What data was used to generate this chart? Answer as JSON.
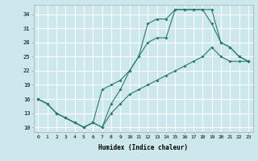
{
  "xlabel": "Humidex (Indice chaleur)",
  "background_color": "#cce8ec",
  "grid_color": "#ffffff",
  "line_color": "#2a7a70",
  "yticks": [
    10,
    13,
    16,
    19,
    22,
    25,
    28,
    31,
    34
  ],
  "xticks": [
    0,
    1,
    2,
    3,
    4,
    5,
    6,
    7,
    8,
    9,
    10,
    11,
    12,
    13,
    14,
    15,
    16,
    17,
    18,
    19,
    20,
    21,
    22,
    23
  ],
  "xlim": [
    -0.5,
    23.5
  ],
  "ylim": [
    9,
    36
  ],
  "line1_x": [
    0,
    1,
    2,
    3,
    4,
    5,
    6,
    7,
    8,
    9,
    10,
    11,
    12,
    13,
    14,
    15,
    16,
    17,
    18,
    19,
    20,
    21,
    22,
    23
  ],
  "line1_y": [
    16,
    15,
    13,
    12,
    11,
    10,
    11,
    10,
    15,
    18,
    22,
    25,
    32,
    33,
    33,
    35,
    35,
    35,
    35,
    35,
    28,
    27,
    25,
    24
  ],
  "line2_x": [
    0,
    1,
    2,
    3,
    4,
    5,
    6,
    7,
    8,
    9,
    10,
    11,
    12,
    13,
    14,
    15,
    16,
    17,
    18,
    19,
    20,
    21,
    22,
    23
  ],
  "line2_y": [
    16,
    15,
    13,
    12,
    11,
    10,
    11,
    18,
    19,
    20,
    22,
    25,
    28,
    29,
    29,
    35,
    35,
    35,
    35,
    32,
    28,
    27,
    25,
    24
  ],
  "line3_x": [
    0,
    1,
    2,
    3,
    4,
    5,
    6,
    7,
    8,
    9,
    10,
    11,
    12,
    13,
    14,
    15,
    16,
    17,
    18,
    19,
    20,
    21,
    22,
    23
  ],
  "line3_y": [
    16,
    15,
    13,
    12,
    11,
    10,
    11,
    10,
    13,
    15,
    17,
    18,
    19,
    20,
    21,
    22,
    23,
    24,
    25,
    27,
    25,
    24,
    24,
    24
  ]
}
